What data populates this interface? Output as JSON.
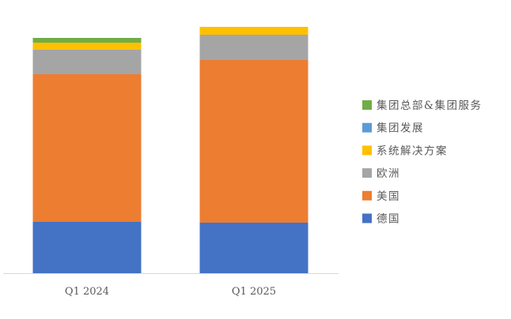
{
  "chart_data": {
    "type": "bar",
    "stacked": true,
    "categories": [
      "Q1 2024",
      "Q1 2025"
    ],
    "series": [
      {
        "name": "德国",
        "color": "#4472C4",
        "values": [
          65,
          64
        ]
      },
      {
        "name": "美国",
        "color": "#ED7D31",
        "values": [
          187,
          206
        ]
      },
      {
        "name": "欧洲",
        "color": "#A5A5A5",
        "values": [
          31,
          32
        ]
      },
      {
        "name": "系统解决方案",
        "color": "#FFC000",
        "values": [
          9,
          10
        ]
      },
      {
        "name": "集团发展",
        "color": "#5B9BD5",
        "values": [
          0,
          0
        ]
      },
      {
        "name": "集团总部&集团服务",
        "color": "#70AD47",
        "values": [
          6,
          0
        ]
      }
    ],
    "legend_order": [
      "集团总部&集团服务",
      "集团发展",
      "系统解决方案",
      "欧洲",
      "美国",
      "德国"
    ],
    "legend_position": "right",
    "grid": false,
    "ylim": [
      0,
      320
    ]
  }
}
